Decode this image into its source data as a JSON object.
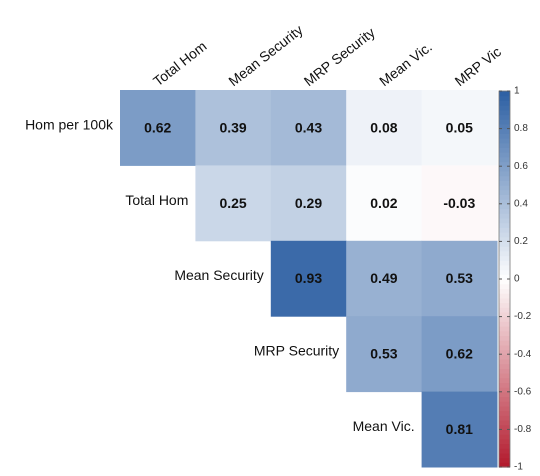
{
  "chart_data": {
    "type": "heatmap",
    "columns": [
      "Total Hom",
      "Mean Security",
      "MRP Security",
      "Mean Vic.",
      "MRP Vic"
    ],
    "rows": [
      "Hom per 100k",
      "Total Hom",
      "Mean Security",
      "MRP Security",
      "Mean Vic."
    ],
    "values": [
      [
        0.62,
        0.39,
        0.43,
        0.08,
        0.05
      ],
      [
        null,
        0.25,
        0.29,
        0.02,
        -0.03
      ],
      [
        null,
        null,
        0.93,
        0.49,
        0.53
      ],
      [
        null,
        null,
        null,
        0.53,
        0.62
      ],
      [
        null,
        null,
        null,
        null,
        0.81
      ]
    ],
    "colorscale": [
      "#b2182b",
      "#ffffff",
      "#2c5fa3"
    ],
    "colorbar_lim": [
      -1,
      1
    ],
    "colorbar_ticks": [
      -1,
      -0.8,
      -0.6,
      -0.4,
      -0.2,
      0,
      0.2,
      0.4,
      0.6,
      0.8,
      1
    ]
  }
}
